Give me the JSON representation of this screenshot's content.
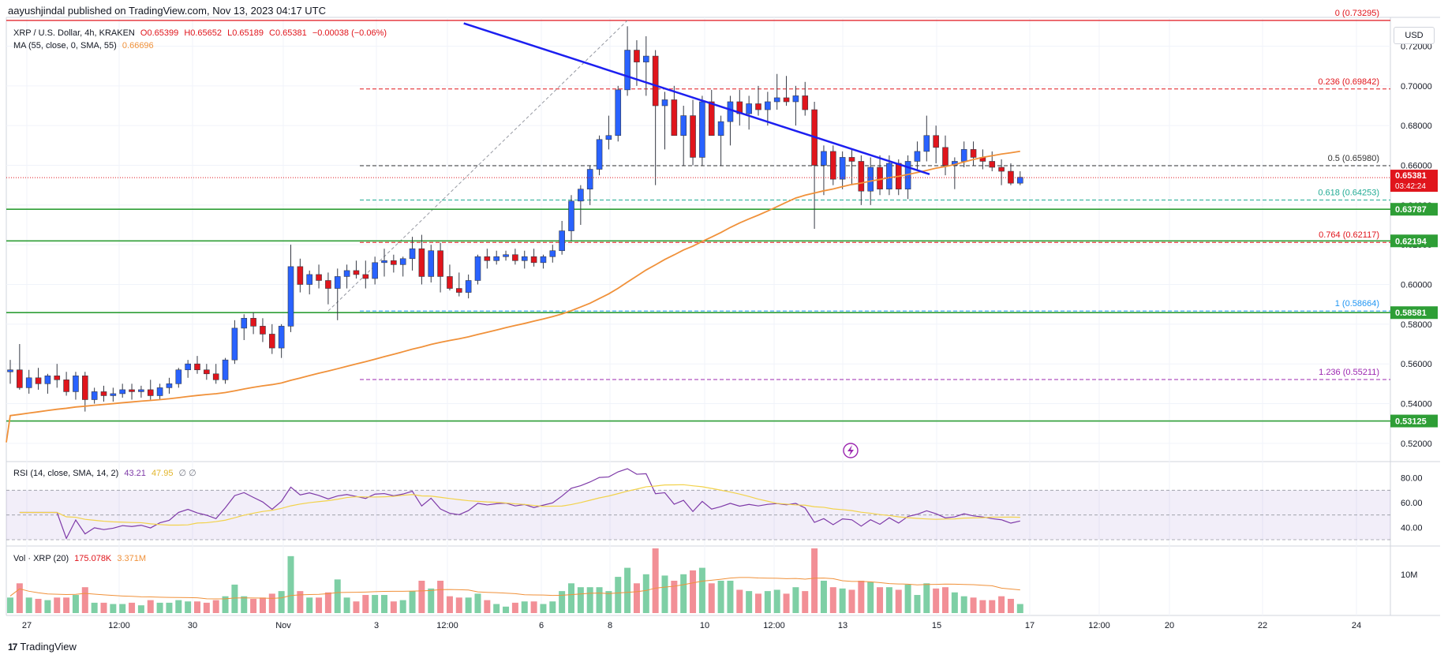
{
  "header": {
    "published_by": "aayushjindal published on TradingView.com, Nov 13, 2023 04:17 UTC"
  },
  "symbol": {
    "title": "XRP / U.S. Dollar, 4h, KRAKEN",
    "open": "O0.65399",
    "high": "H0.65652",
    "low": "L0.65189",
    "close": "C0.65381",
    "change": "−0.00038 (−0.06%)",
    "ma_label": "MA (55, close, 0, SMA, 55)",
    "ma_value": "0.66696"
  },
  "currency_button": "USD",
  "colors": {
    "up": "#2962ff",
    "down": "#e0151c",
    "ma": "#f0913a",
    "trendline": "#1c1ff0",
    "support": "#2e9e36",
    "rsi": "#7e3aa8",
    "rsi_ma": "#f2d24b",
    "vol_up": "#7ecfa5",
    "vol_down": "#f28f96"
  },
  "chart_data": [
    {
      "type": "candlestick",
      "timeframe": "4h",
      "y_ticks": [
        "0.72000",
        "0.70000",
        "0.68000",
        "0.66000",
        "0.64000",
        "0.62000",
        "0.60000",
        "0.58000",
        "0.56000",
        "0.54000",
        "0.52000"
      ],
      "ylim": [
        0.512,
        0.7345
      ],
      "x_ticks": [
        "27",
        "12:00",
        "30",
        "Nov",
        "3",
        "12:00",
        "6",
        "8",
        "10",
        "12:00",
        "13",
        "15",
        "17",
        "12:00",
        "20",
        "22",
        "24"
      ],
      "last_price": "0.65381",
      "countdown": "03:42:24",
      "support_levels": [
        "0.63787",
        "0.62194",
        "0.58581",
        "0.53125"
      ],
      "fib_levels": [
        {
          "ratio": "0",
          "label": "0 (0.73295)",
          "value": 0.73295,
          "color": "#e0151c"
        },
        {
          "ratio": "0.236",
          "label": "0.236 (0.69842)",
          "value": 0.69842,
          "color": "#e0151c"
        },
        {
          "ratio": "0.5",
          "label": "0.5 (0.65980)",
          "value": 0.6598,
          "color": "#333333"
        },
        {
          "ratio": "0.618",
          "label": "0.618 (0.64253)",
          "value": 0.64253,
          "color": "#22ab94"
        },
        {
          "ratio": "0.764",
          "label": "0.764 (0.62117)",
          "value": 0.62117,
          "color": "#e0151c"
        },
        {
          "ratio": "1",
          "label": "1 (0.58664)",
          "value": 0.58664,
          "color": "#2196f3"
        },
        {
          "ratio": "1.236",
          "label": "1.236 (0.55211)",
          "value": 0.55211,
          "color": "#9c27b0"
        }
      ],
      "ohlc": [
        [
          0.556,
          0.562,
          0.55,
          0.557
        ],
        [
          0.557,
          0.57,
          0.547,
          0.548
        ],
        [
          0.548,
          0.557,
          0.545,
          0.553
        ],
        [
          0.553,
          0.558,
          0.547,
          0.55
        ],
        [
          0.55,
          0.555,
          0.545,
          0.554
        ],
        [
          0.554,
          0.56,
          0.548,
          0.552
        ],
        [
          0.552,
          0.556,
          0.544,
          0.546
        ],
        [
          0.546,
          0.556,
          0.542,
          0.554
        ],
        [
          0.554,
          0.556,
          0.536,
          0.542
        ],
        [
          0.542,
          0.548,
          0.54,
          0.546
        ],
        [
          0.546,
          0.549,
          0.541,
          0.544
        ],
        [
          0.544,
          0.548,
          0.541,
          0.545
        ],
        [
          0.545,
          0.55,
          0.543,
          0.547
        ],
        [
          0.547,
          0.55,
          0.542,
          0.546
        ],
        [
          0.546,
          0.549,
          0.543,
          0.547
        ],
        [
          0.547,
          0.552,
          0.542,
          0.544
        ],
        [
          0.544,
          0.55,
          0.542,
          0.548
        ],
        [
          0.548,
          0.553,
          0.545,
          0.55
        ],
        [
          0.55,
          0.558,
          0.548,
          0.557
        ],
        [
          0.557,
          0.562,
          0.553,
          0.56
        ],
        [
          0.56,
          0.564,
          0.555,
          0.557
        ],
        [
          0.557,
          0.56,
          0.552,
          0.555
        ],
        [
          0.555,
          0.56,
          0.55,
          0.552
        ],
        [
          0.552,
          0.563,
          0.55,
          0.562
        ],
        [
          0.562,
          0.582,
          0.56,
          0.578
        ],
        [
          0.578,
          0.585,
          0.572,
          0.583
        ],
        [
          0.583,
          0.586,
          0.575,
          0.579
        ],
        [
          0.579,
          0.583,
          0.571,
          0.575
        ],
        [
          0.575,
          0.58,
          0.565,
          0.568
        ],
        [
          0.568,
          0.58,
          0.563,
          0.579
        ],
        [
          0.579,
          0.62,
          0.576,
          0.609
        ],
        [
          0.609,
          0.613,
          0.596,
          0.6
        ],
        [
          0.6,
          0.607,
          0.595,
          0.605
        ],
        [
          0.605,
          0.61,
          0.598,
          0.602
        ],
        [
          0.602,
          0.606,
          0.59,
          0.598
        ],
        [
          0.598,
          0.608,
          0.582,
          0.604
        ],
        [
          0.604,
          0.61,
          0.598,
          0.607
        ],
        [
          0.607,
          0.612,
          0.603,
          0.605
        ],
        [
          0.605,
          0.612,
          0.598,
          0.603
        ],
        [
          0.603,
          0.614,
          0.6,
          0.611
        ],
        [
          0.611,
          0.618,
          0.604,
          0.612
        ],
        [
          0.612,
          0.615,
          0.606,
          0.61
        ],
        [
          0.61,
          0.614,
          0.604,
          0.613
        ],
        [
          0.613,
          0.624,
          0.607,
          0.618
        ],
        [
          0.618,
          0.625,
          0.6,
          0.604
        ],
        [
          0.604,
          0.62,
          0.601,
          0.617
        ],
        [
          0.617,
          0.621,
          0.596,
          0.604
        ],
        [
          0.604,
          0.61,
          0.597,
          0.598
        ],
        [
          0.598,
          0.606,
          0.594,
          0.596
        ],
        [
          0.596,
          0.605,
          0.593,
          0.602
        ],
        [
          0.602,
          0.615,
          0.6,
          0.614
        ],
        [
          0.614,
          0.618,
          0.608,
          0.612
        ],
        [
          0.612,
          0.617,
          0.61,
          0.614
        ],
        [
          0.614,
          0.617,
          0.612,
          0.615
        ],
        [
          0.615,
          0.618,
          0.61,
          0.612
        ],
        [
          0.612,
          0.617,
          0.608,
          0.614
        ],
        [
          0.614,
          0.618,
          0.609,
          0.611
        ],
        [
          0.611,
          0.615,
          0.608,
          0.614
        ],
        [
          0.614,
          0.62,
          0.611,
          0.617
        ],
        [
          0.617,
          0.632,
          0.615,
          0.627
        ],
        [
          0.627,
          0.645,
          0.622,
          0.642
        ],
        [
          0.642,
          0.65,
          0.63,
          0.648
        ],
        [
          0.648,
          0.66,
          0.64,
          0.658
        ],
        [
          0.658,
          0.675,
          0.655,
          0.673
        ],
        [
          0.673,
          0.685,
          0.668,
          0.675
        ],
        [
          0.675,
          0.7,
          0.672,
          0.698
        ],
        [
          0.698,
          0.73,
          0.695,
          0.718
        ],
        [
          0.718,
          0.723,
          0.7,
          0.712
        ],
        [
          0.712,
          0.725,
          0.695,
          0.715
        ],
        [
          0.715,
          0.718,
          0.65,
          0.69
        ],
        [
          0.69,
          0.697,
          0.668,
          0.693
        ],
        [
          0.693,
          0.7,
          0.675,
          0.675
        ],
        [
          0.675,
          0.69,
          0.66,
          0.685
        ],
        [
          0.685,
          0.693,
          0.66,
          0.664
        ],
        [
          0.664,
          0.695,
          0.66,
          0.692
        ],
        [
          0.692,
          0.698,
          0.675,
          0.675
        ],
        [
          0.675,
          0.685,
          0.66,
          0.682
        ],
        [
          0.682,
          0.695,
          0.67,
          0.692
        ],
        [
          0.692,
          0.698,
          0.68,
          0.686
        ],
        [
          0.686,
          0.695,
          0.678,
          0.691
        ],
        [
          0.691,
          0.7,
          0.685,
          0.688
        ],
        [
          0.688,
          0.697,
          0.68,
          0.692
        ],
        [
          0.692,
          0.706,
          0.688,
          0.694
        ],
        [
          0.694,
          0.705,
          0.69,
          0.692
        ],
        [
          0.692,
          0.7,
          0.68,
          0.695
        ],
        [
          0.695,
          0.702,
          0.685,
          0.688
        ],
        [
          0.688,
          0.692,
          0.628,
          0.66
        ],
        [
          0.66,
          0.67,
          0.645,
          0.667
        ],
        [
          0.667,
          0.67,
          0.65,
          0.653
        ],
        [
          0.653,
          0.667,
          0.648,
          0.664
        ],
        [
          0.664,
          0.668,
          0.65,
          0.662
        ],
        [
          0.662,
          0.665,
          0.64,
          0.647
        ],
        [
          0.647,
          0.664,
          0.64,
          0.659
        ],
        [
          0.659,
          0.665,
          0.645,
          0.648
        ],
        [
          0.648,
          0.665,
          0.645,
          0.661
        ],
        [
          0.661,
          0.663,
          0.645,
          0.648
        ],
        [
          0.648,
          0.665,
          0.643,
          0.662
        ],
        [
          0.662,
          0.672,
          0.658,
          0.667
        ],
        [
          0.667,
          0.685,
          0.662,
          0.675
        ],
        [
          0.675,
          0.68,
          0.661,
          0.669
        ],
        [
          0.669,
          0.675,
          0.655,
          0.66
        ],
        [
          0.66,
          0.664,
          0.648,
          0.662
        ],
        [
          0.662,
          0.672,
          0.659,
          0.668
        ],
        [
          0.668,
          0.672,
          0.66,
          0.664
        ],
        [
          0.664,
          0.668,
          0.658,
          0.662
        ],
        [
          0.662,
          0.667,
          0.657,
          0.659
        ],
        [
          0.659,
          0.663,
          0.65,
          0.657
        ],
        [
          0.657,
          0.661,
          0.65,
          0.651
        ],
        [
          0.651,
          0.657,
          0.65,
          0.654
        ]
      ]
    },
    {
      "type": "line",
      "name": "RSI (14, close, SMA, 14, 2)",
      "label": "RSI (14, close, SMA, 14, 2)",
      "value": "43.21",
      "ma_value": "47.95",
      "extra": "∅ ∅",
      "y_ticks": [
        "80.00",
        "60.00",
        "40.00"
      ],
      "ylim": [
        30,
        90
      ]
    },
    {
      "type": "bar",
      "name": "Vol · XRP (20)",
      "label": "Vol · XRP (20)",
      "value": "175.078K",
      "ma_value": "3.371M",
      "y_ticks": [
        "10M"
      ]
    }
  ],
  "footer": {
    "logo_text": "TradingView"
  }
}
